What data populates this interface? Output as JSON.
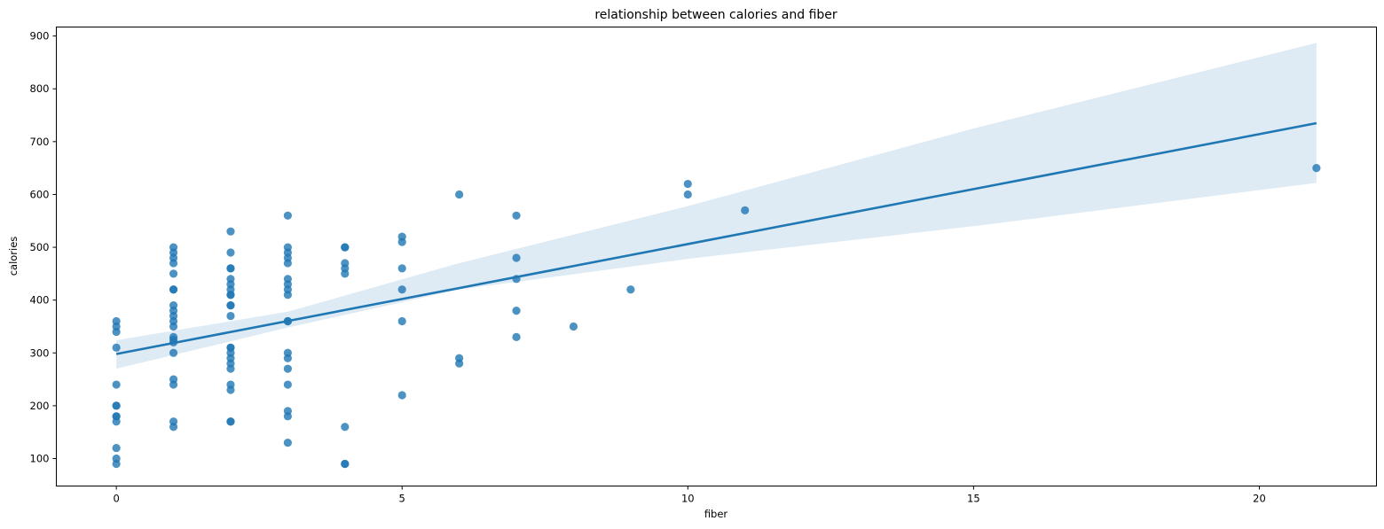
{
  "chart_data": {
    "type": "scatter",
    "title": "relationship between calories and fiber",
    "xlabel": "fiber",
    "ylabel": "calories",
    "xlim": [
      -1.05,
      22.05
    ],
    "ylim": [
      48,
      917
    ],
    "xticks": [
      0,
      5,
      10,
      15,
      20
    ],
    "yticks": [
      100,
      200,
      300,
      400,
      500,
      600,
      700,
      800,
      900
    ],
    "grid": false,
    "point_color": "#1f77b4",
    "line_color": "#1f77b4",
    "band_color": "#1f77b4",
    "points": [
      [
        0,
        360
      ],
      [
        0,
        350
      ],
      [
        0,
        340
      ],
      [
        0,
        310
      ],
      [
        0,
        240
      ],
      [
        0,
        200
      ],
      [
        0,
        200
      ],
      [
        0,
        180
      ],
      [
        0,
        180
      ],
      [
        0,
        170
      ],
      [
        0,
        120
      ],
      [
        0,
        100
      ],
      [
        0,
        90
      ],
      [
        1,
        500
      ],
      [
        1,
        490
      ],
      [
        1,
        480
      ],
      [
        1,
        470
      ],
      [
        1,
        450
      ],
      [
        1,
        420
      ],
      [
        1,
        420
      ],
      [
        1,
        390
      ],
      [
        1,
        380
      ],
      [
        1,
        370
      ],
      [
        1,
        360
      ],
      [
        1,
        350
      ],
      [
        1,
        330
      ],
      [
        1,
        325
      ],
      [
        1,
        320
      ],
      [
        1,
        300
      ],
      [
        1,
        250
      ],
      [
        1,
        240
      ],
      [
        1,
        170
      ],
      [
        1,
        160
      ],
      [
        2,
        530
      ],
      [
        2,
        490
      ],
      [
        2,
        460
      ],
      [
        2,
        460
      ],
      [
        2,
        440
      ],
      [
        2,
        430
      ],
      [
        2,
        420
      ],
      [
        2,
        410
      ],
      [
        2,
        410
      ],
      [
        2,
        390
      ],
      [
        2,
        390
      ],
      [
        2,
        370
      ],
      [
        2,
        310
      ],
      [
        2,
        310
      ],
      [
        2,
        300
      ],
      [
        2,
        290
      ],
      [
        2,
        280
      ],
      [
        2,
        270
      ],
      [
        2,
        240
      ],
      [
        2,
        230
      ],
      [
        2,
        170
      ],
      [
        2,
        170
      ],
      [
        3,
        560
      ],
      [
        3,
        500
      ],
      [
        3,
        490
      ],
      [
        3,
        480
      ],
      [
        3,
        470
      ],
      [
        3,
        440
      ],
      [
        3,
        430
      ],
      [
        3,
        420
      ],
      [
        3,
        410
      ],
      [
        3,
        360
      ],
      [
        3,
        360
      ],
      [
        3,
        300
      ],
      [
        3,
        290
      ],
      [
        3,
        270
      ],
      [
        3,
        240
      ],
      [
        3,
        190
      ],
      [
        3,
        180
      ],
      [
        3,
        130
      ],
      [
        4,
        500
      ],
      [
        4,
        500
      ],
      [
        4,
        470
      ],
      [
        4,
        460
      ],
      [
        4,
        450
      ],
      [
        4,
        160
      ],
      [
        4,
        90
      ],
      [
        4,
        90
      ],
      [
        5,
        520
      ],
      [
        5,
        510
      ],
      [
        5,
        460
      ],
      [
        5,
        420
      ],
      [
        5,
        360
      ],
      [
        5,
        220
      ],
      [
        6,
        600
      ],
      [
        6,
        290
      ],
      [
        6,
        280
      ],
      [
        7,
        560
      ],
      [
        7,
        480
      ],
      [
        7,
        440
      ],
      [
        7,
        380
      ],
      [
        7,
        330
      ],
      [
        8,
        350
      ],
      [
        9,
        420
      ],
      [
        10,
        620
      ],
      [
        10,
        600
      ],
      [
        11,
        570
      ],
      [
        21,
        650
      ]
    ],
    "regression": {
      "x": [
        0,
        21
      ],
      "y": [
        298,
        735
      ]
    },
    "confidence_band": {
      "x": [
        0,
        3,
        6,
        10,
        15,
        21
      ],
      "lower": [
        270,
        348,
        420,
        478,
        540,
        622
      ],
      "upper": [
        324,
        378,
        470,
        578,
        725,
        887
      ]
    }
  }
}
